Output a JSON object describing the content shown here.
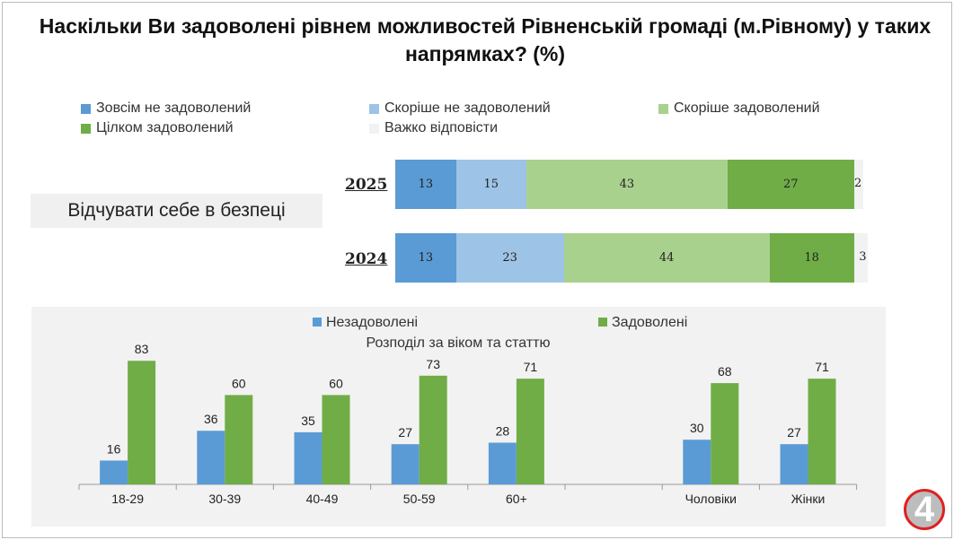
{
  "title": "Наскільки Ви задоволені рівнем можливостей Рівненській громаді (м.Рівному) у таких напрямках? (%)",
  "colors": {
    "very_dissatisfied": "#5b9bd5",
    "rather_dissatisfied": "#9dc3e6",
    "rather_satisfied": "#a9d18e",
    "fully_satisfied": "#70ad47",
    "hard_to_say": "#f2f2f2"
  },
  "chart_data": [
    {
      "type": "bar",
      "stacked": true,
      "orientation": "horizontal",
      "title": "Відчувати себе в безпеці",
      "legend": [
        "Зовсім не задоволений",
        "Скоріше не задоволений",
        "Скоріше задоволений",
        "Цілком задоволений",
        "Важко відповісти"
      ],
      "categories": [
        "2025",
        "2024"
      ],
      "series": [
        {
          "name": "Зовсім не задоволений",
          "values": [
            13,
            13
          ]
        },
        {
          "name": "Скоріше не задоволений",
          "values": [
            15,
            23
          ]
        },
        {
          "name": "Скоріше задоволений",
          "values": [
            43,
            44
          ]
        },
        {
          "name": "Цілком задоволений",
          "values": [
            27,
            18
          ]
        },
        {
          "name": "Важко відповісти",
          "values": [
            2,
            3
          ]
        }
      ]
    },
    {
      "type": "bar",
      "title": "Розподіл за віком та статтю",
      "legend_position": "top",
      "categories": [
        "18-29",
        "30-39",
        "40-49",
        "50-59",
        "60+",
        "",
        "Чоловіки",
        "Жінки"
      ],
      "series": [
        {
          "name": "Незадоволені",
          "color": "#5b9bd5",
          "values": [
            16,
            36,
            35,
            27,
            28,
            null,
            30,
            27
          ]
        },
        {
          "name": "Задоволені",
          "color": "#70ad47",
          "values": [
            83,
            60,
            60,
            73,
            71,
            null,
            68,
            71
          ]
        }
      ],
      "ylim": [
        0,
        90
      ]
    }
  ],
  "logo_text": "4"
}
